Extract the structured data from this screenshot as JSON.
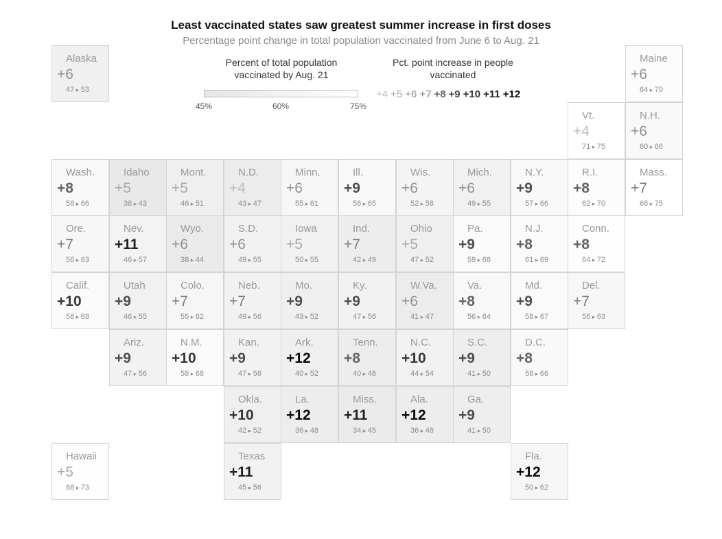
{
  "title": "Least vaccinated states saw greatest summer increase in first doses",
  "subtitle": "Percentage point change in total population vaccinated from June 6 to Aug. 21",
  "legend": {
    "pct_title_line1": "Percent of total population",
    "pct_title_line2": "vaccinated by Aug. 21",
    "pct_ticks": [
      "45%",
      "60%",
      "75%"
    ],
    "inc_title_line1": "Pct. point increase in people",
    "inc_title_line2": "vaccinated",
    "inc_values": [
      "+4",
      "+5",
      "+6",
      "+7",
      "+8",
      "+9",
      "+10",
      "+11",
      "+12"
    ]
  },
  "states": [
    {
      "name": "Alaska",
      "increase": 6,
      "june": 47,
      "aug": 53,
      "col": 0,
      "row": 0
    },
    {
      "name": "Maine",
      "increase": 6,
      "june": 64,
      "aug": 70,
      "col": 10,
      "row": 0
    },
    {
      "name": "Vt.",
      "increase": 4,
      "june": 71,
      "aug": 75,
      "col": 9,
      "row": 1
    },
    {
      "name": "N.H.",
      "increase": 6,
      "june": 60,
      "aug": 66,
      "col": 10,
      "row": 1
    },
    {
      "name": "Wash.",
      "increase": 8,
      "june": 58,
      "aug": 66,
      "col": 0,
      "row": 2
    },
    {
      "name": "Idaho",
      "increase": 5,
      "june": 38,
      "aug": 43,
      "col": 1,
      "row": 2
    },
    {
      "name": "Mont.",
      "increase": 5,
      "june": 46,
      "aug": 51,
      "col": 2,
      "row": 2
    },
    {
      "name": "N.D.",
      "increase": 4,
      "june": 43,
      "aug": 47,
      "col": 3,
      "row": 2
    },
    {
      "name": "Minn.",
      "increase": 6,
      "june": 55,
      "aug": 61,
      "col": 4,
      "row": 2
    },
    {
      "name": "Ill.",
      "increase": 9,
      "june": 56,
      "aug": 65,
      "col": 5,
      "row": 2
    },
    {
      "name": "Wis.",
      "increase": 6,
      "june": 52,
      "aug": 58,
      "col": 6,
      "row": 2
    },
    {
      "name": "Mich.",
      "increase": 6,
      "june": 49,
      "aug": 55,
      "col": 7,
      "row": 2
    },
    {
      "name": "N.Y.",
      "increase": 9,
      "june": 57,
      "aug": 66,
      "col": 8,
      "row": 2
    },
    {
      "name": "R.I.",
      "increase": 8,
      "june": 62,
      "aug": 70,
      "col": 9,
      "row": 2
    },
    {
      "name": "Mass.",
      "increase": 7,
      "june": 68,
      "aug": 75,
      "col": 10,
      "row": 2
    },
    {
      "name": "Ore.",
      "increase": 7,
      "june": 56,
      "aug": 63,
      "col": 0,
      "row": 3
    },
    {
      "name": "Nev.",
      "increase": 11,
      "june": 46,
      "aug": 57,
      "col": 1,
      "row": 3
    },
    {
      "name": "Wyo.",
      "increase": 6,
      "june": 38,
      "aug": 44,
      "col": 2,
      "row": 3
    },
    {
      "name": "S.D.",
      "increase": 6,
      "june": 49,
      "aug": 55,
      "col": 3,
      "row": 3
    },
    {
      "name": "Iowa",
      "increase": 5,
      "june": 50,
      "aug": 55,
      "col": 4,
      "row": 3
    },
    {
      "name": "Ind.",
      "increase": 7,
      "june": 42,
      "aug": 49,
      "col": 5,
      "row": 3
    },
    {
      "name": "Ohio",
      "increase": 5,
      "june": 47,
      "aug": 52,
      "col": 6,
      "row": 3
    },
    {
      "name": "Pa.",
      "increase": 9,
      "june": 59,
      "aug": 68,
      "col": 7,
      "row": 3
    },
    {
      "name": "N.J.",
      "increase": 8,
      "june": 61,
      "aug": 69,
      "col": 8,
      "row": 3
    },
    {
      "name": "Conn.",
      "increase": 8,
      "june": 64,
      "aug": 72,
      "col": 9,
      "row": 3
    },
    {
      "name": "Calif.",
      "increase": 10,
      "june": 58,
      "aug": 68,
      "col": 0,
      "row": 4
    },
    {
      "name": "Utah",
      "increase": 9,
      "june": 46,
      "aug": 55,
      "col": 1,
      "row": 4
    },
    {
      "name": "Colo.",
      "increase": 7,
      "june": 55,
      "aug": 62,
      "col": 2,
      "row": 4
    },
    {
      "name": "Neb.",
      "increase": 7,
      "june": 49,
      "aug": 56,
      "col": 3,
      "row": 4
    },
    {
      "name": "Mo.",
      "increase": 9,
      "june": 43,
      "aug": 52,
      "col": 4,
      "row": 4
    },
    {
      "name": "Ky.",
      "increase": 9,
      "june": 47,
      "aug": 56,
      "col": 5,
      "row": 4
    },
    {
      "name": "W.Va.",
      "increase": 6,
      "june": 41,
      "aug": 47,
      "col": 6,
      "row": 4
    },
    {
      "name": "Va.",
      "increase": 8,
      "june": 56,
      "aug": 64,
      "col": 7,
      "row": 4
    },
    {
      "name": "Md.",
      "increase": 9,
      "june": 58,
      "aug": 67,
      "col": 8,
      "row": 4
    },
    {
      "name": "Del.",
      "increase": 7,
      "june": 56,
      "aug": 63,
      "col": 9,
      "row": 4
    },
    {
      "name": "Ariz.",
      "increase": 9,
      "june": 47,
      "aug": 56,
      "col": 1,
      "row": 5
    },
    {
      "name": "N.M.",
      "increase": 10,
      "june": 58,
      "aug": 68,
      "col": 2,
      "row": 5
    },
    {
      "name": "Kan.",
      "increase": 9,
      "june": 47,
      "aug": 56,
      "col": 3,
      "row": 5
    },
    {
      "name": "Ark.",
      "increase": 12,
      "june": 40,
      "aug": 52,
      "col": 4,
      "row": 5
    },
    {
      "name": "Tenn.",
      "increase": 8,
      "june": 40,
      "aug": 48,
      "col": 5,
      "row": 5
    },
    {
      "name": "N.C.",
      "increase": 10,
      "june": 44,
      "aug": 54,
      "col": 6,
      "row": 5
    },
    {
      "name": "S.C.",
      "increase": 9,
      "june": 41,
      "aug": 50,
      "col": 7,
      "row": 5
    },
    {
      "name": "D.C.",
      "increase": 8,
      "june": 58,
      "aug": 66,
      "col": 8,
      "row": 5
    },
    {
      "name": "Okla.",
      "increase": 10,
      "june": 42,
      "aug": 52,
      "col": 3,
      "row": 6
    },
    {
      "name": "La.",
      "increase": 12,
      "june": 36,
      "aug": 48,
      "col": 4,
      "row": 6
    },
    {
      "name": "Miss.",
      "increase": 11,
      "june": 34,
      "aug": 45,
      "col": 5,
      "row": 6
    },
    {
      "name": "Ala.",
      "increase": 12,
      "june": 36,
      "aug": 48,
      "col": 6,
      "row": 6
    },
    {
      "name": "Ga.",
      "increase": 9,
      "june": 41,
      "aug": 50,
      "col": 7,
      "row": 6
    },
    {
      "name": "Hawaii",
      "increase": 5,
      "june": 68,
      "aug": 73,
      "col": 0,
      "row": 7
    },
    {
      "name": "Texas",
      "increase": 11,
      "june": 45,
      "aug": 56,
      "col": 3,
      "row": 7
    },
    {
      "name": "Fla.",
      "increase": 12,
      "june": 50,
      "aug": 62,
      "col": 8,
      "row": 7
    }
  ]
}
